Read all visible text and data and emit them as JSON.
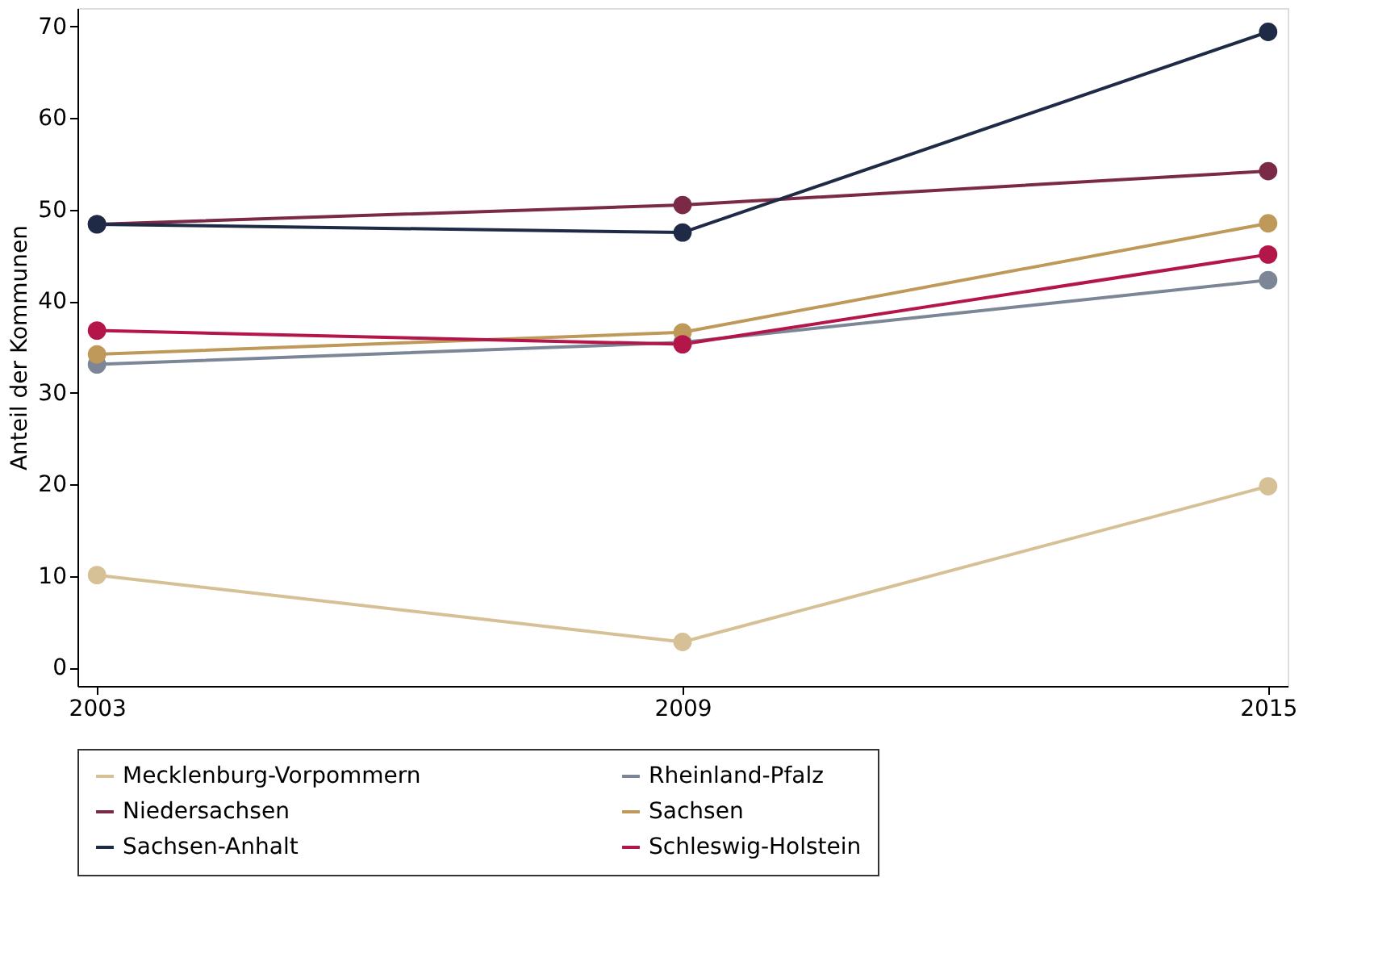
{
  "chart_data": {
    "type": "line",
    "ylabel": "Anteil der Kommunen",
    "x": [
      2003,
      2009,
      2015
    ],
    "series": [
      {
        "name": "Mecklenburg-Vorpommern",
        "color": "#d6c096",
        "values": [
          10.1,
          2.8,
          19.8
        ]
      },
      {
        "name": "Rheinland-Pfalz",
        "color": "#7c8696",
        "values": [
          33.1,
          35.5,
          42.3
        ]
      },
      {
        "name": "Niedersachsen",
        "color": "#7a2a46",
        "values": [
          48.4,
          50.5,
          54.2
        ]
      },
      {
        "name": "Sachsen",
        "color": "#bf995a",
        "values": [
          34.2,
          36.6,
          48.5
        ]
      },
      {
        "name": "Sachsen-Anhalt",
        "color": "#1e2a46",
        "values": [
          48.4,
          47.5,
          69.4
        ]
      },
      {
        "name": "Schleswig-Holstein",
        "color": "#b4164a",
        "values": [
          36.8,
          35.3,
          45.1
        ]
      }
    ],
    "xlim": [
      2002.8,
      2015.2
    ],
    "xticks": [
      2003,
      2009,
      2015
    ],
    "ylim": [
      -2,
      72
    ],
    "yticks": [
      0,
      10,
      20,
      30,
      40,
      50,
      60,
      70
    ],
    "grid": false,
    "legend": "bottom",
    "marker": "circle",
    "line_style": "solid"
  }
}
